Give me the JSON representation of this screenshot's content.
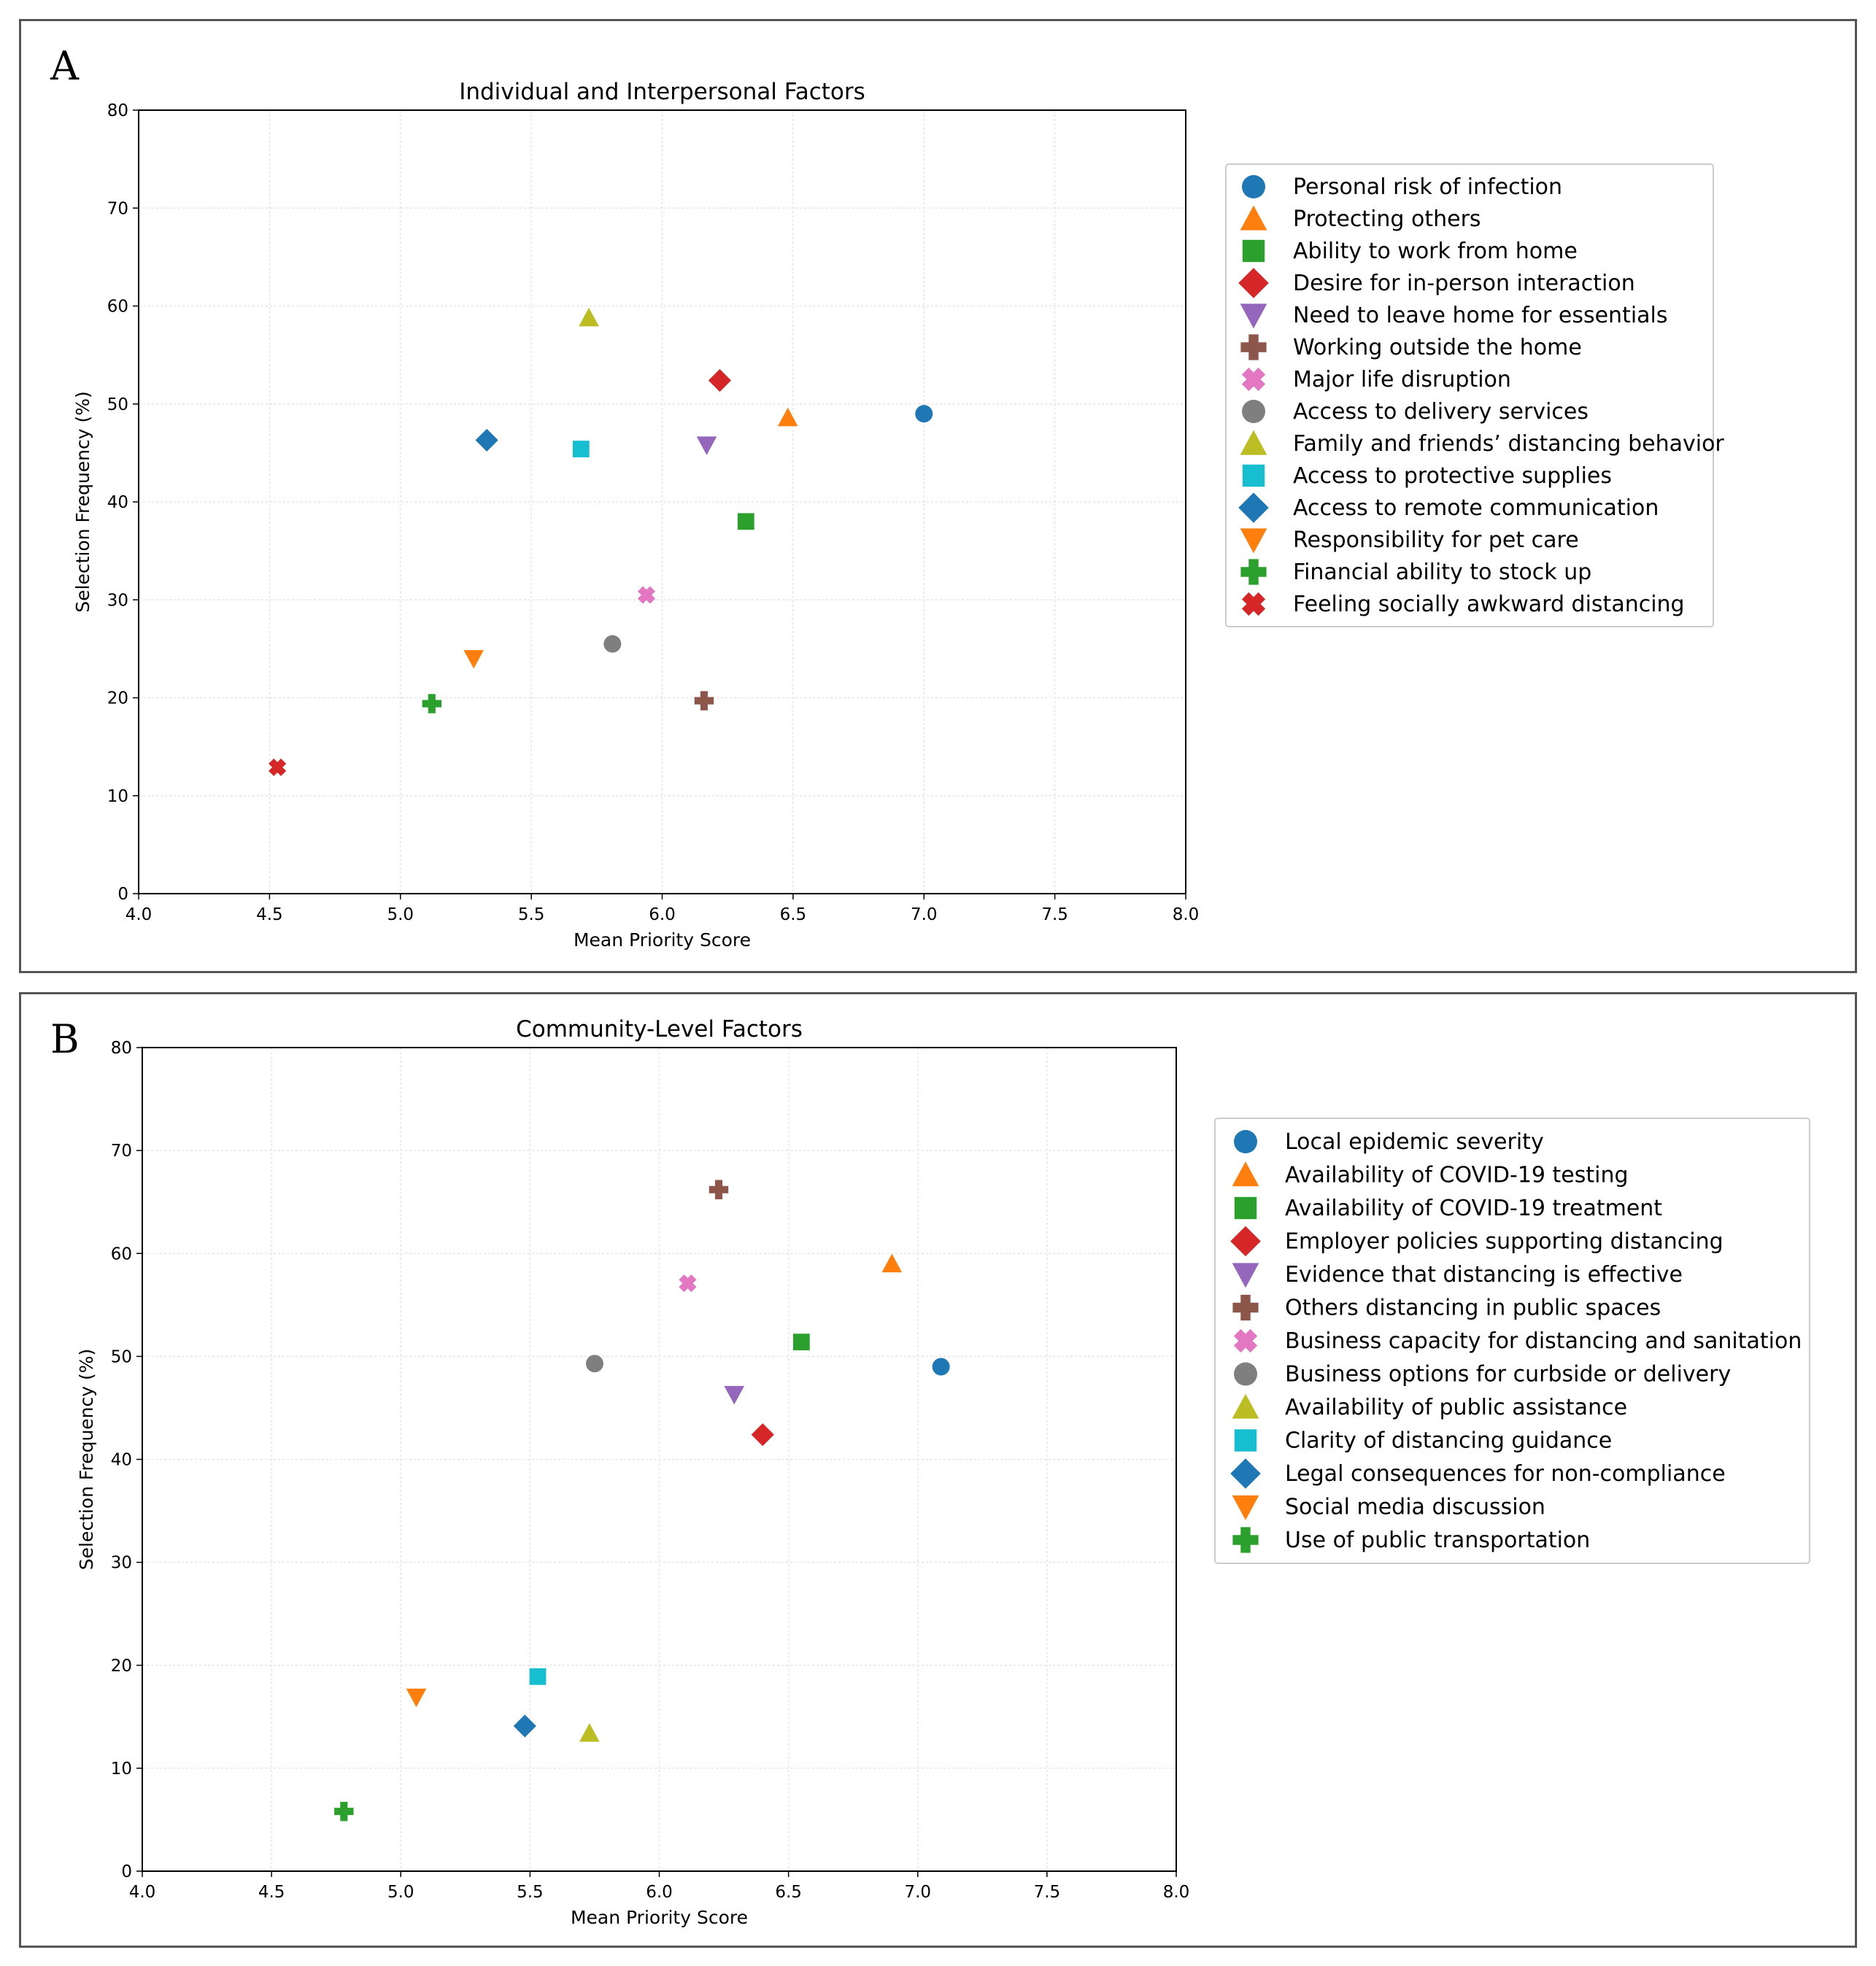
{
  "chart_data": [
    {
      "type": "scatter",
      "panel": "A",
      "title": "Individual and Interpersonal Factors",
      "xlabel": "Mean Priority Score",
      "ylabel": "Selection Frequency (%)",
      "xlim": [
        4.0,
        8.0
      ],
      "ylim": [
        0,
        80
      ],
      "xticks": [
        "4.0",
        "4.5",
        "5.0",
        "5.5",
        "6.0",
        "6.5",
        "7.0",
        "7.5",
        "8.0"
      ],
      "yticks": [
        "0",
        "10",
        "20",
        "30",
        "40",
        "50",
        "60",
        "70",
        "80"
      ],
      "grid": true,
      "legend_placement": "right",
      "series": [
        {
          "name": "Personal risk of infection",
          "x": 7.0,
          "y": 49,
          "marker": "circle",
          "color": "#1f77b4"
        },
        {
          "name": "Protecting others",
          "x": 6.48,
          "y": 48.6,
          "marker": "triangle-up",
          "color": "#ff7f0e"
        },
        {
          "name": "Ability to work from home",
          "x": 6.32,
          "y": 38,
          "marker": "square",
          "color": "#2ca02c"
        },
        {
          "name": "Desire for in-person interaction",
          "x": 6.22,
          "y": 52.4,
          "marker": "diamond",
          "color": "#d62728"
        },
        {
          "name": "Need to leave home for essentials",
          "x": 6.17,
          "y": 45.8,
          "marker": "triangle-down",
          "color": "#9467bd"
        },
        {
          "name": "Working outside the home",
          "x": 6.16,
          "y": 19.7,
          "marker": "plus",
          "color": "#8c564b"
        },
        {
          "name": "Major life disruption",
          "x": 5.94,
          "y": 30.5,
          "marker": "x",
          "color": "#e377c2"
        },
        {
          "name": "Access to delivery services",
          "x": 5.81,
          "y": 25.5,
          "marker": "circle",
          "color": "#7f7f7f"
        },
        {
          "name": "Family and friends’ distancing behavior",
          "x": 5.72,
          "y": 58.8,
          "marker": "triangle-up",
          "color": "#bcbd22"
        },
        {
          "name": "Access to protective supplies",
          "x": 5.69,
          "y": 45.4,
          "marker": "square",
          "color": "#17becf"
        },
        {
          "name": "Access to remote communication",
          "x": 5.33,
          "y": 46.3,
          "marker": "diamond",
          "color": "#1f77b4"
        },
        {
          "name": "Responsibility for pet care",
          "x": 5.28,
          "y": 24,
          "marker": "triangle-down",
          "color": "#ff7f0e"
        },
        {
          "name": "Financial ability to stock up",
          "x": 5.12,
          "y": 19.4,
          "marker": "plus",
          "color": "#2ca02c"
        },
        {
          "name": "Feeling socially awkward distancing",
          "x": 4.53,
          "y": 12.9,
          "marker": "x",
          "color": "#d62728"
        }
      ]
    },
    {
      "type": "scatter",
      "panel": "B",
      "title": "Community-Level Factors",
      "xlabel": "Mean Priority Score",
      "ylabel": "Selection Frequency (%)",
      "xlim": [
        4.0,
        8.0
      ],
      "ylim": [
        0,
        80
      ],
      "xticks": [
        "4.0",
        "4.5",
        "5.0",
        "5.5",
        "6.0",
        "6.5",
        "7.0",
        "7.5",
        "8.0"
      ],
      "yticks": [
        "0",
        "10",
        "20",
        "30",
        "40",
        "50",
        "60",
        "70",
        "80"
      ],
      "grid": true,
      "legend_placement": "right",
      "series": [
        {
          "name": "Local epidemic severity",
          "x": 7.09,
          "y": 49,
          "marker": "circle",
          "color": "#1f77b4"
        },
        {
          "name": "Availability of COVID-19 testing",
          "x": 6.9,
          "y": 59,
          "marker": "triangle-up",
          "color": "#ff7f0e"
        },
        {
          "name": "Availability of COVID-19 treatment",
          "x": 6.55,
          "y": 51.4,
          "marker": "square",
          "color": "#2ca02c"
        },
        {
          "name": "Employer policies supporting distancing",
          "x": 6.4,
          "y": 42.4,
          "marker": "diamond",
          "color": "#d62728"
        },
        {
          "name": "Evidence that distancing is effective",
          "x": 6.29,
          "y": 46.3,
          "marker": "triangle-down",
          "color": "#9467bd"
        },
        {
          "name": "Others distancing in public spaces",
          "x": 6.23,
          "y": 66.2,
          "marker": "plus",
          "color": "#8c564b"
        },
        {
          "name": "Business capacity for distancing and sanitation",
          "x": 6.11,
          "y": 57.1,
          "marker": "x",
          "color": "#e377c2"
        },
        {
          "name": "Business options for curbside or delivery",
          "x": 5.75,
          "y": 49.3,
          "marker": "circle",
          "color": "#7f7f7f"
        },
        {
          "name": "Availability of public assistance",
          "x": 5.73,
          "y": 13.4,
          "marker": "triangle-up",
          "color": "#bcbd22"
        },
        {
          "name": "Clarity of distancing guidance",
          "x": 5.53,
          "y": 18.9,
          "marker": "square",
          "color": "#17becf"
        },
        {
          "name": "Legal consequences for non-compliance",
          "x": 5.48,
          "y": 14.1,
          "marker": "diamond",
          "color": "#1f77b4"
        },
        {
          "name": "Social media discussion",
          "x": 5.06,
          "y": 16.9,
          "marker": "triangle-down",
          "color": "#ff7f0e"
        },
        {
          "name": "Use of public transportation",
          "x": 4.78,
          "y": 5.8,
          "marker": "plus",
          "color": "#2ca02c"
        }
      ]
    }
  ]
}
